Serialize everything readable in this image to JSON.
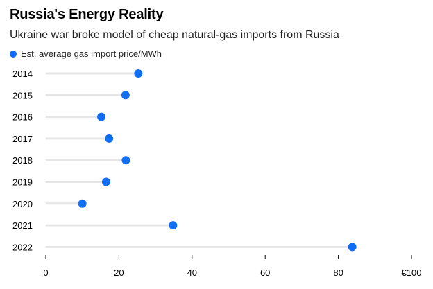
{
  "chart_data": {
    "type": "lollipop",
    "title": "Russia's Energy Reality",
    "subtitle": "Ukraine war broke model of cheap natural-gas imports from Russia",
    "xlabel": "",
    "ylabel": "",
    "categories": [
      "2014",
      "2015",
      "2016",
      "2017",
      "2018",
      "2019",
      "2020",
      "2021",
      "2022"
    ],
    "series": [
      {
        "name": "Est. average gas import price/MWh",
        "values": [
          25.3,
          21.8,
          15.2,
          17.3,
          21.9,
          16.5,
          10.0,
          34.8,
          83.8
        ]
      }
    ],
    "xlim": [
      0,
      100
    ],
    "xticks": [
      0,
      20,
      40,
      60,
      80,
      100
    ],
    "xtick_labels": [
      "0",
      "20",
      "40",
      "60",
      "80",
      "€100"
    ],
    "legend": "top-left",
    "grid": false,
    "colors": {
      "dot": "#0f6ef5",
      "stem": "#e6e6e6"
    }
  }
}
